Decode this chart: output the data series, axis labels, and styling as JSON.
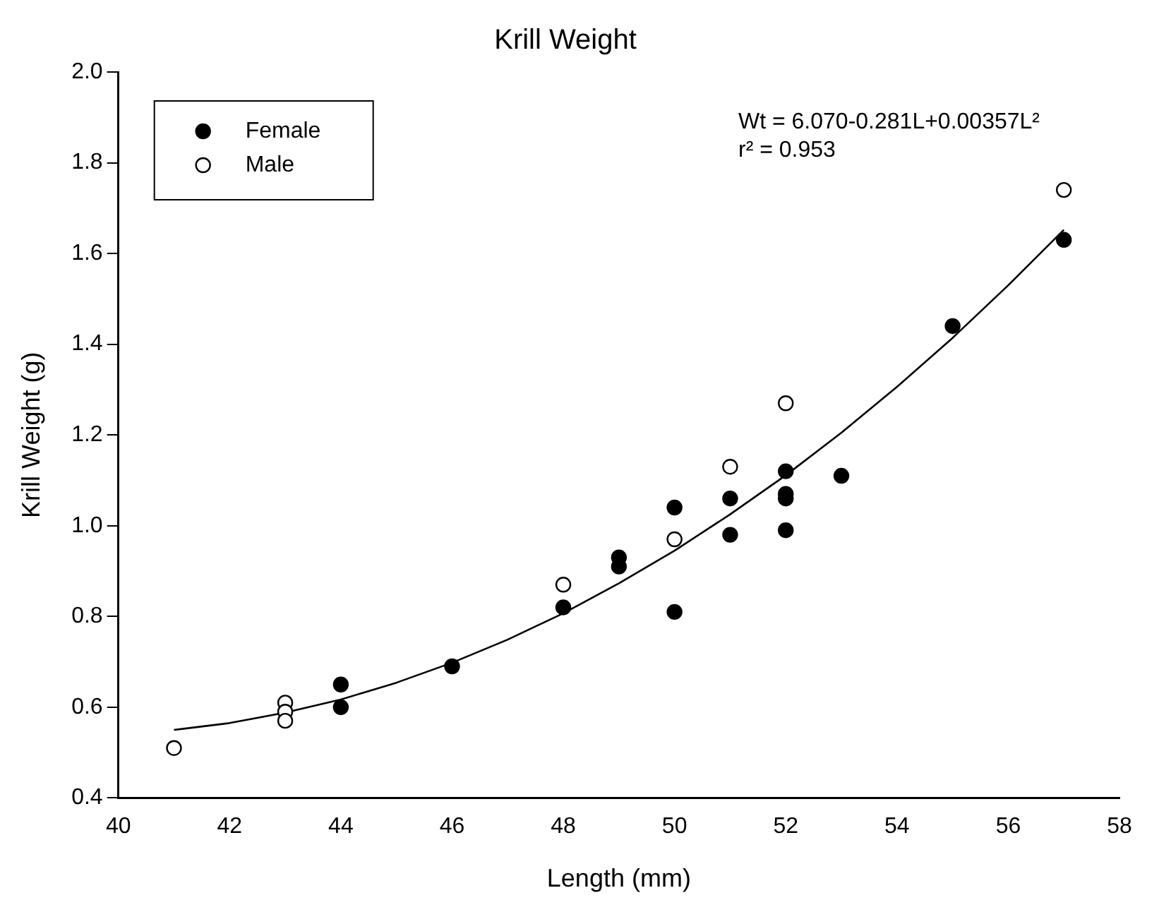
{
  "chart_data": {
    "type": "scatter",
    "title": "Krill Weight",
    "xlabel": "Length (mm)",
    "ylabel": "Krill Weight (g)",
    "xlim": [
      40,
      58
    ],
    "xticks": [
      40,
      42,
      44,
      46,
      48,
      50,
      52,
      54,
      56,
      58
    ],
    "ylim": [
      0.4,
      2.0
    ],
    "yticks": [
      {
        "value": 0.4,
        "label": "0.4"
      },
      {
        "value": 0.6,
        "label": "0.6"
      },
      {
        "value": 0.8,
        "label": "0.8"
      },
      {
        "value": 1.0,
        "label": "1.0"
      },
      {
        "value": 1.2,
        "label": "1.2"
      },
      {
        "value": 1.4,
        "label": "1.4"
      },
      {
        "value": 1.6,
        "label": "1.6"
      },
      {
        "value": 1.8,
        "label": "1.8"
      },
      {
        "value": 2.0,
        "label": "2.0"
      }
    ],
    "grid": false,
    "legend": "top left",
    "marker": "circle",
    "annotations": [
      "Wt = 6.070-0.281L+0.00357L²",
      "r² = 0.953"
    ],
    "series": [
      {
        "name": "Female",
        "color": "#000000",
        "x": [
          44,
          44,
          46,
          48,
          49,
          49,
          50,
          50,
          51,
          51,
          52,
          52,
          52,
          52,
          53,
          55,
          57
        ],
        "values": [
          0.65,
          0.6,
          0.69,
          0.82,
          0.93,
          0.91,
          1.04,
          0.81,
          1.06,
          0.98,
          1.12,
          1.07,
          1.06,
          0.99,
          1.11,
          1.44,
          1.63
        ]
      },
      {
        "name": "Male",
        "color": "#ffffff",
        "x": [
          41,
          43,
          43,
          43,
          48,
          50,
          51,
          52,
          57
        ],
        "values": [
          0.51,
          0.61,
          0.59,
          0.57,
          0.87,
          0.97,
          1.13,
          1.27,
          1.74
        ]
      },
      {
        "type": "line",
        "color": "#000000",
        "marker": "none",
        "line_style": "solid",
        "x": [
          41,
          42,
          43,
          44,
          45,
          46,
          47,
          48,
          49,
          50,
          51,
          52,
          53,
          54,
          55,
          56,
          57
        ],
        "values": [
          0.55,
          0.565,
          0.588,
          0.617,
          0.654,
          0.698,
          0.749,
          0.807,
          0.873,
          0.945,
          1.025,
          1.111,
          1.205,
          1.306,
          1.414,
          1.53,
          1.652
        ]
      }
    ]
  }
}
